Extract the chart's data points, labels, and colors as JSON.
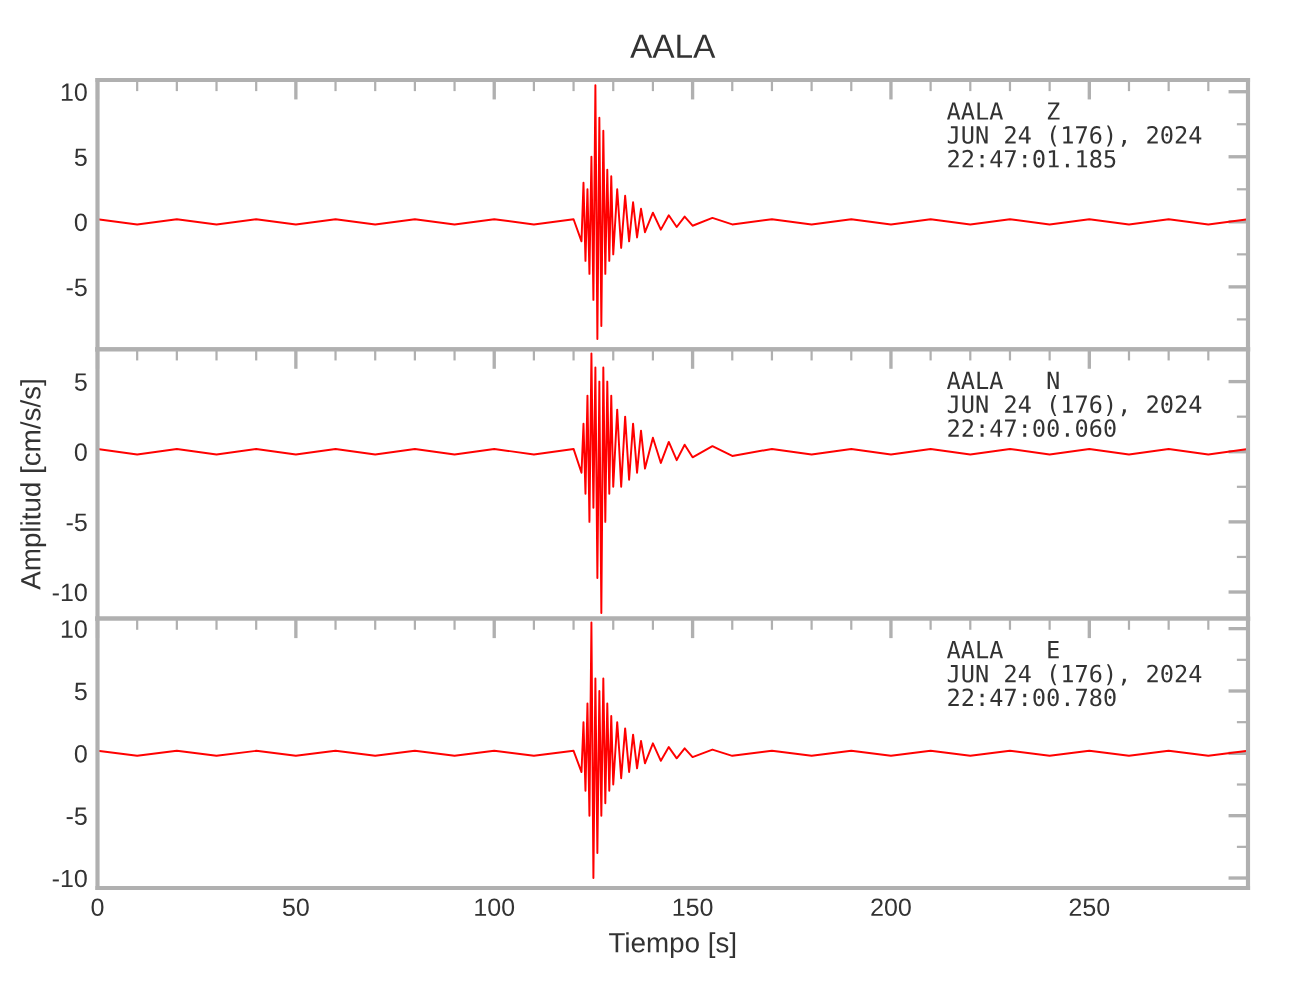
{
  "chart_data": [
    {
      "type": "line",
      "title": "AALA",
      "annotations": [
        "AALA   Z\nJUN 24 (176), 2024\n22:47:01.185"
      ],
      "xlim": [
        0,
        290
      ],
      "xticks": [
        0,
        50,
        100,
        150,
        200,
        250
      ],
      "ylim": [
        -9.8,
        10.9
      ],
      "yticks": [
        -5,
        0,
        5,
        10
      ],
      "tick_labels": "y",
      "grid": false,
      "series": [
        {
          "color": "#ff0000",
          "x": [
            0,
            10,
            20,
            30,
            40,
            50,
            60,
            70,
            80,
            90,
            100,
            110,
            120,
            122,
            122.5,
            123,
            123.5,
            124,
            124.5,
            125,
            125.5,
            126,
            126.5,
            127,
            127.5,
            128,
            128.5,
            129,
            129.5,
            130,
            131,
            132,
            133,
            134,
            135,
            136,
            137,
            138,
            140,
            142,
            144,
            146,
            148,
            150,
            155,
            160,
            170,
            180,
            190,
            200,
            210,
            220,
            230,
            240,
            250,
            260,
            270,
            280,
            290
          ],
          "values": [
            0.2,
            -0.2,
            0.2,
            -0.2,
            0.2,
            -0.2,
            0.2,
            -0.2,
            0.2,
            -0.2,
            0.2,
            -0.2,
            0.2,
            -1.5,
            3,
            -3,
            2.5,
            -4,
            5,
            -6,
            10.5,
            -9,
            8,
            -8,
            7,
            -4,
            4,
            -3,
            3.5,
            -2.5,
            2.5,
            -2,
            2,
            -1.5,
            1.5,
            -1.2,
            1,
            -0.8,
            0.7,
            -0.6,
            0.5,
            -0.4,
            0.4,
            -0.3,
            0.3,
            -0.2,
            0.2,
            -0.2,
            0.2,
            -0.2,
            0.2,
            -0.2,
            0.2,
            -0.2,
            0.2,
            -0.2,
            0.2,
            -0.2,
            0.2
          ]
        }
      ]
    },
    {
      "type": "line",
      "ylabel": "Amplitud [cm/s/s]",
      "annotations": [
        "AALA   N\nJUN 24 (176), 2024\n22:47:00.060"
      ],
      "xlim": [
        0,
        290
      ],
      "xticks": [
        0,
        50,
        100,
        150,
        200,
        250
      ],
      "ylim": [
        -11.9,
        7.3
      ],
      "yticks": [
        -10,
        -5,
        0,
        5
      ],
      "tick_labels": "y",
      "grid": false,
      "series": [
        {
          "color": "#ff0000",
          "x": [
            0,
            10,
            20,
            30,
            40,
            50,
            60,
            70,
            80,
            90,
            100,
            110,
            120,
            122,
            122.5,
            123,
            123.5,
            124,
            124.5,
            125,
            125.5,
            126,
            126.5,
            127,
            127.5,
            128,
            128.5,
            129,
            129.5,
            130,
            131,
            132,
            133,
            134,
            135,
            136,
            137,
            138,
            140,
            142,
            144,
            146,
            148,
            150,
            155,
            160,
            170,
            180,
            190,
            200,
            210,
            220,
            230,
            240,
            250,
            260,
            270,
            280,
            290
          ],
          "values": [
            0.2,
            -0.2,
            0.2,
            -0.2,
            0.2,
            -0.2,
            0.2,
            -0.2,
            0.2,
            -0.2,
            0.2,
            -0.2,
            0.2,
            -1.5,
            2,
            -3,
            4,
            -5,
            7,
            -4,
            6,
            -9,
            5,
            -11.5,
            6,
            -5,
            5,
            -3,
            4,
            -2.5,
            3,
            -2.5,
            2.5,
            -2,
            2,
            -1.5,
            1.5,
            -1.2,
            1,
            -0.8,
            0.7,
            -0.6,
            0.5,
            -0.4,
            0.4,
            -0.3,
            0.2,
            -0.2,
            0.2,
            -0.2,
            0.2,
            -0.2,
            0.2,
            -0.2,
            0.2,
            -0.2,
            0.2,
            -0.2,
            0.2
          ]
        }
      ]
    },
    {
      "type": "line",
      "xlabel": "Tiempo [s]",
      "annotations": [
        "AALA   E\nJUN 24 (176), 2024\n22:47:00.780"
      ],
      "xlim": [
        0,
        290
      ],
      "xticks": [
        0,
        50,
        100,
        150,
        200,
        250
      ],
      "ylim": [
        -10.8,
        10.8
      ],
      "yticks": [
        -10,
        -5,
        0,
        5,
        10
      ],
      "grid": false,
      "series": [
        {
          "color": "#ff0000",
          "x": [
            0,
            10,
            20,
            30,
            40,
            50,
            60,
            70,
            80,
            90,
            100,
            110,
            120,
            122,
            122.5,
            123,
            123.5,
            124,
            124.5,
            125,
            125.5,
            126,
            126.5,
            127,
            127.5,
            128,
            128.5,
            129,
            129.5,
            130,
            131,
            132,
            133,
            134,
            135,
            136,
            137,
            138,
            140,
            142,
            144,
            146,
            148,
            150,
            155,
            160,
            170,
            180,
            190,
            200,
            210,
            220,
            230,
            240,
            250,
            260,
            270,
            280,
            290
          ],
          "values": [
            0.2,
            -0.2,
            0.2,
            -0.2,
            0.2,
            -0.2,
            0.2,
            -0.2,
            0.2,
            -0.2,
            0.2,
            -0.2,
            0.2,
            -1.5,
            2.5,
            -3,
            4,
            -5,
            10.5,
            -10,
            6,
            -8,
            5,
            -5,
            6,
            -4,
            4,
            -3,
            3,
            -2.5,
            2.5,
            -2,
            2,
            -1.5,
            1.5,
            -1.2,
            1,
            -0.8,
            0.8,
            -0.6,
            0.5,
            -0.4,
            0.4,
            -0.3,
            0.3,
            -0.2,
            0.2,
            -0.2,
            0.2,
            -0.2,
            0.2,
            -0.2,
            0.2,
            -0.2,
            0.2,
            -0.2,
            0.2,
            -0.2,
            0.2
          ]
        }
      ]
    }
  ]
}
